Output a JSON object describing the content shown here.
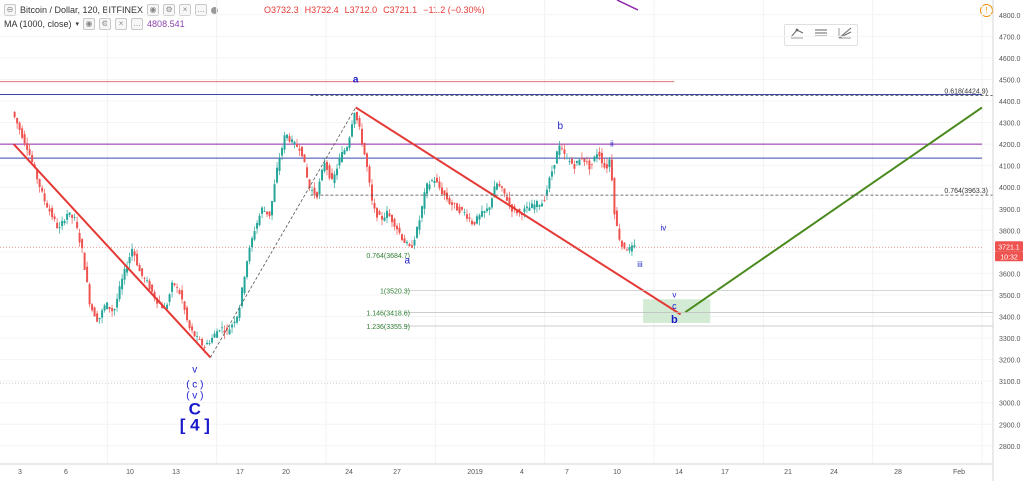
{
  "header": {
    "symbol": "Bitcoin / Dollar, 120, BITFINEX",
    "open": "O3732.3",
    "high": "H3732.4",
    "low": "L3712.0",
    "close": "C3721.1",
    "change": "−11.2 (−0.30%)",
    "ma_label": "MA (1000, close)",
    "ma_value": "4808.541"
  },
  "price_badge": {
    "price": "3721.1",
    "countdown": "10:32"
  },
  "colors": {
    "up": "#26a69a",
    "down": "#ef5350",
    "trend": "#e53935",
    "projection": "#4a8a1c",
    "wave": "#1a1acc",
    "fib": "#2e7d32"
  },
  "chart_data": {
    "type": "candlestick",
    "y_range": [
      2750,
      4850
    ],
    "y_ticks": [
      "4800.0",
      "4700.0",
      "4600.0",
      "4500.0",
      "4400.0",
      "4300.0",
      "4200.0",
      "4100.0",
      "4000.0",
      "3900.0",
      "3800.0",
      "3700.0",
      "3600.0",
      "3500.0",
      "3400.0",
      "3300.0",
      "3200.0",
      "3100.0",
      "3000.0",
      "2900.0",
      "2800.0"
    ],
    "x_ticks": [
      "3",
      "6",
      "10",
      "13",
      "17",
      "20",
      "24",
      "27",
      "2019",
      "4",
      "7",
      "10",
      "14",
      "17",
      "21",
      "24",
      "28",
      "Feb"
    ],
    "path_points": [
      {
        "day": 2,
        "price": 4350
      },
      {
        "day": 3,
        "price": 4180
      },
      {
        "day": 4,
        "price": 3950
      },
      {
        "day": 5,
        "price": 3800
      },
      {
        "day": 5.5,
        "price": 3880
      },
      {
        "day": 6,
        "price": 3850
      },
      {
        "day": 6.5,
        "price": 3700
      },
      {
        "day": 7,
        "price": 3450
      },
      {
        "day": 7.5,
        "price": 3380
      },
      {
        "day": 8,
        "price": 3460
      },
      {
        "day": 8.5,
        "price": 3420
      },
      {
        "day": 9,
        "price": 3560
      },
      {
        "day": 9.7,
        "price": 3720
      },
      {
        "day": 10.2,
        "price": 3600
      },
      {
        "day": 10.7,
        "price": 3550
      },
      {
        "day": 11.2,
        "price": 3480
      },
      {
        "day": 11.8,
        "price": 3430
      },
      {
        "day": 12.3,
        "price": 3560
      },
      {
        "day": 12.8,
        "price": 3500
      },
      {
        "day": 13.3,
        "price": 3350
      },
      {
        "day": 13.8,
        "price": 3300
      },
      {
        "day": 14.3,
        "price": 3260
      },
      {
        "day": 14.8,
        "price": 3300
      },
      {
        "day": 15.3,
        "price": 3350
      },
      {
        "day": 15.8,
        "price": 3330
      },
      {
        "day": 16.5,
        "price": 3420
      },
      {
        "day": 17,
        "price": 3650
      },
      {
        "day": 17.5,
        "price": 3800
      },
      {
        "day": 18,
        "price": 3900
      },
      {
        "day": 18.5,
        "price": 3870
      },
      {
        "day": 19,
        "price": 4100
      },
      {
        "day": 19.5,
        "price": 4250
      },
      {
        "day": 20,
        "price": 4200
      },
      {
        "day": 20.5,
        "price": 4180
      },
      {
        "day": 21,
        "price": 4000
      },
      {
        "day": 21.5,
        "price": 3960
      },
      {
        "day": 22,
        "price": 4120
      },
      {
        "day": 22.5,
        "price": 4020
      },
      {
        "day": 23,
        "price": 4140
      },
      {
        "day": 23.5,
        "price": 4200
      },
      {
        "day": 23.9,
        "price": 4360
      },
      {
        "day": 24.3,
        "price": 4250
      },
      {
        "day": 24.7,
        "price": 4100
      },
      {
        "day": 25.1,
        "price": 3900
      },
      {
        "day": 25.6,
        "price": 3850
      },
      {
        "day": 26,
        "price": 3880
      },
      {
        "day": 26.5,
        "price": 3830
      },
      {
        "day": 27,
        "price": 3760
      },
      {
        "day": 27.5,
        "price": 3710
      },
      {
        "day": 28,
        "price": 3820
      },
      {
        "day": 28.5,
        "price": 4000
      },
      {
        "day": 29,
        "price": 4040
      },
      {
        "day": 29.5,
        "price": 3980
      },
      {
        "day": 30,
        "price": 3930
      },
      {
        "day": 30.5,
        "price": 3900
      },
      {
        "day": 31,
        "price": 3880
      },
      {
        "day": 31.5,
        "price": 3830
      },
      {
        "day": 32,
        "price": 3870
      },
      {
        "day": 32.5,
        "price": 3900
      },
      {
        "day": 33,
        "price": 4020
      },
      {
        "day": 33.5,
        "price": 3970
      },
      {
        "day": 34,
        "price": 3900
      },
      {
        "day": 34.5,
        "price": 3880
      },
      {
        "day": 35,
        "price": 3900
      },
      {
        "day": 35.5,
        "price": 3920
      },
      {
        "day": 36,
        "price": 3930
      },
      {
        "day": 36.5,
        "price": 4060
      },
      {
        "day": 37,
        "price": 4190
      },
      {
        "day": 37.5,
        "price": 4130
      },
      {
        "day": 38,
        "price": 4100
      },
      {
        "day": 38.5,
        "price": 4140
      },
      {
        "day": 39,
        "price": 4090
      },
      {
        "day": 39.5,
        "price": 4170
      },
      {
        "day": 40,
        "price": 4080
      },
      {
        "day": 40.3,
        "price": 4140
      },
      {
        "day": 40.6,
        "price": 3850
      },
      {
        "day": 41,
        "price": 3730
      },
      {
        "day": 41.5,
        "price": 3710
      },
      {
        "day": 41.8,
        "price": 3721
      }
    ],
    "series": [
      {
        "name": "",
        "type": "trendline",
        "points": [
          {
            "day": 2,
            "price": 4200
          },
          {
            "day": 14.6,
            "price": 3210
          }
        ]
      },
      {
        "name": "",
        "type": "trendline",
        "points": [
          {
            "day": 23.9,
            "price": 4370
          },
          {
            "day": 44.7,
            "price": 3410
          }
        ]
      },
      {
        "name": "",
        "type": "trendline",
        "points": [
          {
            "day": 45,
            "price": 3420
          },
          {
            "day": 64,
            "price": 4370
          }
        ]
      },
      {
        "name": "",
        "type": "dashed",
        "points": [
          {
            "day": 14.6,
            "price": 3210
          },
          {
            "day": 23.9,
            "price": 4370
          }
        ]
      }
    ],
    "horizontal_lines": [
      {
        "price": 4490,
        "color": "#e57373",
        "x_end_day": 44.3
      },
      {
        "price": 4430,
        "color": "#3949ab",
        "x_end_day": 64
      },
      {
        "price": 4200,
        "color": "#8e24aa",
        "x_end_day": 64
      },
      {
        "price": 4135,
        "color": "#3949ab",
        "x_end_day": 64
      },
      {
        "price": 3721,
        "color": "#ef9a9a",
        "x_end_day": 64,
        "dotted": true
      },
      {
        "price": 3090,
        "color": "#cfcfcf",
        "x_end_day": 64,
        "dotted": true
      }
    ],
    "fib_levels": [
      {
        "price": 4424.9,
        "label": "0.618(4424.9)",
        "x_start_day": 21,
        "x_end_day": 64,
        "style": "dashed-dark"
      },
      {
        "price": 3963.3,
        "label": "0.764(3963.3)",
        "x_start_day": 21,
        "x_end_day": 64,
        "style": "dashed-dark"
      },
      {
        "price": 3684.7,
        "label": "0.764(3684.7)",
        "x_start_day": 27,
        "x_end_day": 27,
        "style": "label-only"
      },
      {
        "price": 3520.3,
        "label": "1(3520.3)",
        "x_start_day": 27,
        "x_end_day": 64,
        "style": "thin-gray"
      },
      {
        "price": 3418.6,
        "label": "1.146(3418.6)",
        "x_start_day": 27,
        "x_end_day": 64,
        "style": "thin-gray"
      },
      {
        "price": 3355.9,
        "label": "1.236(3355.9)",
        "x_start_day": 27,
        "x_end_day": 64,
        "style": "thin-gray"
      }
    ],
    "target_zone": {
      "day_from": 42.3,
      "day_to": 46.6,
      "price_from": 3370,
      "price_to": 3480
    },
    "wave_labels": [
      {
        "text": "a",
        "day": 23.9,
        "price": 4485,
        "bold": true,
        "size": 10
      },
      {
        "text": "b",
        "day": 37,
        "price": 4270,
        "bold": false,
        "size": 10
      },
      {
        "text": "a",
        "day": 27.2,
        "price": 3645,
        "bold": false,
        "size": 10
      },
      {
        "text": "ii",
        "day": 40.3,
        "price": 4190,
        "bold": false,
        "size": 8
      },
      {
        "text": "iv",
        "day": 43.6,
        "price": 3800,
        "bold": false,
        "size": 8
      },
      {
        "text": "iii",
        "day": 42.1,
        "price": 3630,
        "bold": false,
        "size": 8
      },
      {
        "text": "v",
        "day": 44.3,
        "price": 3488,
        "bold": false,
        "size": 8
      },
      {
        "text": "c",
        "day": 44.3,
        "price": 3435,
        "bold": false,
        "size": 9
      },
      {
        "text": "b",
        "day": 44.3,
        "price": 3370,
        "bold": true,
        "size": 11
      },
      {
        "text": "v",
        "day": 13.6,
        "price": 3140,
        "bold": false,
        "size": 10
      },
      {
        "text": "( c )",
        "day": 13.6,
        "price": 3070,
        "bold": false,
        "size": 10
      },
      {
        "text": "( v )",
        "day": 13.6,
        "price": 3020,
        "bold": false,
        "size": 10
      },
      {
        "text": "C",
        "day": 13.6,
        "price": 2945,
        "bold": true,
        "size": 17
      },
      {
        "text": "[ 4 ]",
        "day": 13.6,
        "price": 2870,
        "bold": true,
        "size": 17
      }
    ]
  }
}
